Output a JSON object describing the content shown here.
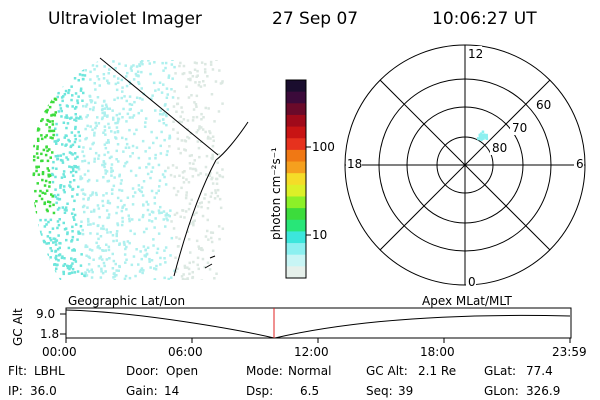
{
  "header": {
    "title": "Ultraviolet Imager",
    "date": "27 Sep 07",
    "time": "10:06:27 UT"
  },
  "color_bar": {
    "label": "photon cm⁻²s⁻¹",
    "ticks": [
      "100",
      "10"
    ],
    "colors": [
      "#1a0d2e",
      "#3b0a3a",
      "#6a0a2a",
      "#a00a1a",
      "#c81414",
      "#e6321e",
      "#f07814",
      "#f5a01e",
      "#f5dc28",
      "#dcf028",
      "#8cf028",
      "#3cdc3c",
      "#28e678",
      "#3ce6dc",
      "#8cf0f0",
      "#c8f5f5",
      "#e6f0eb"
    ]
  },
  "polar_plot": {
    "mlt_labels": [
      "12",
      "18",
      "6",
      "0"
    ],
    "lat_labels": [
      "60",
      "70",
      "80"
    ],
    "blob_color": "#8cf0f0"
  },
  "image_panel": {
    "colors": {
      "bright": "#3cdc3c",
      "mid": "#6ee6dc",
      "light": "#aef0ee",
      "faint": "#dce8e2"
    }
  },
  "timeline": {
    "axis_label": "GC Alt",
    "left_heading": "Geographic Lat/Lon",
    "right_heading": "Apex MLat/MLT",
    "y_ticks": [
      "9.0",
      "1.8"
    ],
    "x_ticks": [
      "00:00",
      "06:00",
      "12:00",
      "18:00",
      "23:59"
    ],
    "marker_time": "10:06:27",
    "marker_color": "#e02020"
  },
  "status": {
    "row1": [
      {
        "label": "Flt:",
        "value": "LBHL"
      },
      {
        "label": "Door:",
        "value": "Open"
      },
      {
        "label": "Mode:",
        "value": "Normal"
      },
      {
        "label": "GC Alt:",
        "value": "2.1 Re"
      },
      {
        "label": "GLat:",
        "value": "77.4"
      }
    ],
    "row2": [
      {
        "label": "IP:",
        "value": "36.0"
      },
      {
        "label": "Gain:",
        "value": "14"
      },
      {
        "label": "Dsp:",
        "value": "6.5"
      },
      {
        "label": "Seq:",
        "value": "39"
      },
      {
        "label": "GLon:",
        "value": "326.9"
      }
    ]
  }
}
